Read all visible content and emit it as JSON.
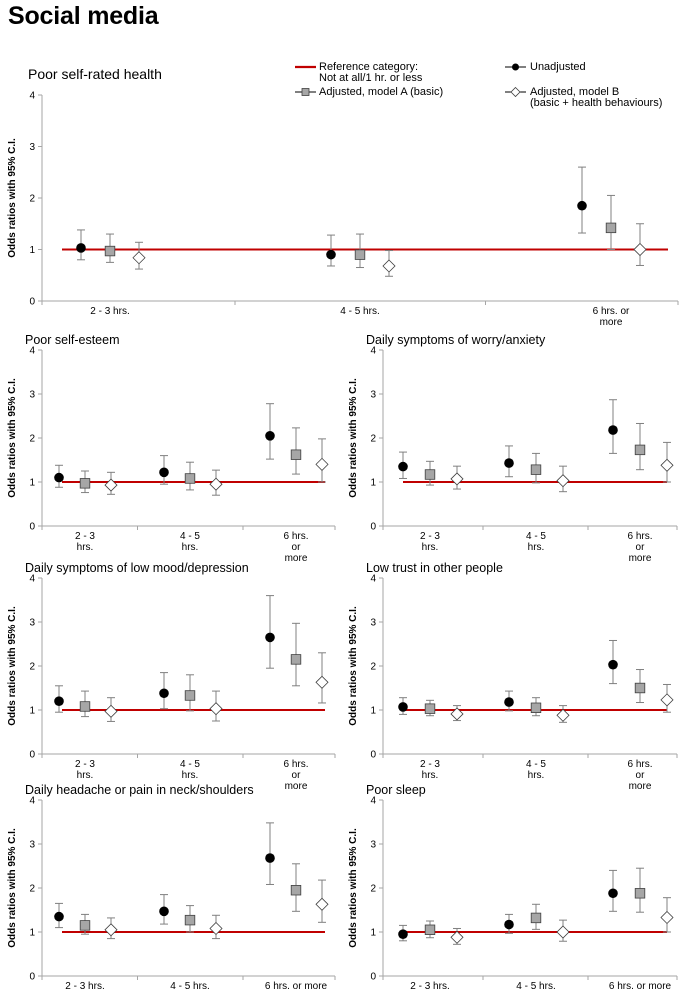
{
  "page_title": "Social media",
  "legend": {
    "reference": "Reference category:",
    "reference_line2": "Not at all/1 hr. or less",
    "unadjusted": "Unadjusted",
    "model_a": "Adjusted, model A (basic)",
    "model_b": "Adjusted, model B",
    "model_b_line2": "(basic + health behaviours)"
  },
  "colors": {
    "reference_line": "#c00000",
    "unadjusted_marker": "#000000",
    "model_a_marker": "#a6a6a6",
    "model_b_marker": "#ffffff",
    "error_bar": "#808080",
    "axis": "#a6a6a6"
  },
  "chart_data": [
    {
      "type": "scatter",
      "title": "Poor self-rated health",
      "ylabel": "Odds ratios with 95% C.I.",
      "ylim": [
        0,
        4
      ],
      "yticks": [
        "0",
        "1",
        "2",
        "3",
        "4"
      ],
      "reference_value": 1,
      "categories": [
        [
          "2 - 3 hrs."
        ],
        [
          "4 - 5 hrs."
        ],
        [
          "6 hrs. or",
          "more"
        ]
      ],
      "series": [
        {
          "name": "Unadjusted",
          "values": [
            1.03,
            0.9,
            1.85
          ],
          "lower": [
            0.8,
            0.68,
            1.32
          ],
          "upper": [
            1.38,
            1.28,
            2.6
          ]
        },
        {
          "name": "Adjusted, model A (basic)",
          "values": [
            0.97,
            0.9,
            1.42
          ],
          "lower": [
            0.75,
            0.65,
            1.0
          ],
          "upper": [
            1.3,
            1.3,
            2.05
          ]
        },
        {
          "name": "Adjusted, model B (basic + health behaviours)",
          "values": [
            0.84,
            0.68,
            1.0
          ],
          "lower": [
            0.62,
            0.48,
            0.69
          ],
          "upper": [
            1.14,
            0.98,
            1.5
          ]
        }
      ]
    },
    {
      "type": "scatter",
      "title": "Poor self-esteem",
      "ylabel": "Odds ratios with 95% C.I.",
      "ylim": [
        0,
        4
      ],
      "yticks": [
        "0",
        "1",
        "2",
        "3",
        "4"
      ],
      "reference_value": 1,
      "categories": [
        [
          "2 - 3",
          "hrs."
        ],
        [
          "4 - 5",
          "hrs."
        ],
        [
          "6 hrs.",
          "or",
          "more"
        ]
      ],
      "series": [
        {
          "name": "Unadjusted",
          "values": [
            1.1,
            1.22,
            2.05
          ],
          "lower": [
            0.88,
            0.95,
            1.52
          ],
          "upper": [
            1.38,
            1.6,
            2.78
          ]
        },
        {
          "name": "Adjusted, model A (basic)",
          "values": [
            0.97,
            1.08,
            1.62
          ],
          "lower": [
            0.76,
            0.82,
            1.18
          ],
          "upper": [
            1.25,
            1.45,
            2.23
          ]
        },
        {
          "name": "Adjusted, model B (basic + health behaviours)",
          "values": [
            0.93,
            0.95,
            1.4
          ],
          "lower": [
            0.72,
            0.7,
            1.0
          ],
          "upper": [
            1.22,
            1.27,
            1.98
          ]
        }
      ]
    },
    {
      "type": "scatter",
      "title": "Daily symptoms of worry/anxiety",
      "ylabel": "Odds ratios with 95% C.I.",
      "ylim": [
        0,
        4
      ],
      "yticks": [
        "0",
        "1",
        "2",
        "3",
        "4"
      ],
      "reference_value": 1,
      "categories": [
        [
          "2 - 3",
          "hrs."
        ],
        [
          "4 - 5",
          "hrs."
        ],
        [
          "6 hrs.",
          "or",
          "more"
        ]
      ],
      "series": [
        {
          "name": "Unadjusted",
          "values": [
            1.35,
            1.43,
            2.18
          ],
          "lower": [
            1.08,
            1.12,
            1.65
          ],
          "upper": [
            1.68,
            1.82,
            2.87
          ]
        },
        {
          "name": "Adjusted, model A (basic)",
          "values": [
            1.17,
            1.28,
            1.73
          ],
          "lower": [
            0.93,
            0.98,
            1.28
          ],
          "upper": [
            1.47,
            1.65,
            2.33
          ]
        },
        {
          "name": "Adjusted, model B (basic + health behaviours)",
          "values": [
            1.07,
            1.03,
            1.38
          ],
          "lower": [
            0.84,
            0.78,
            1.0
          ],
          "upper": [
            1.36,
            1.36,
            1.9
          ]
        }
      ]
    },
    {
      "type": "scatter",
      "title": "Daily symptoms of low mood/depression",
      "ylabel": "Odds ratios with 95% C.I.",
      "ylim": [
        0,
        4
      ],
      "yticks": [
        "0",
        "1",
        "2",
        "3",
        "4"
      ],
      "reference_value": 1,
      "categories": [
        [
          "2 - 3",
          "hrs."
        ],
        [
          "4 - 5",
          "hrs."
        ],
        [
          "6 hrs.",
          "or",
          "more"
        ]
      ],
      "series": [
        {
          "name": "Unadjusted",
          "values": [
            1.2,
            1.38,
            2.65
          ],
          "lower": [
            0.95,
            1.03,
            1.95
          ],
          "upper": [
            1.55,
            1.85,
            3.6
          ]
        },
        {
          "name": "Adjusted, model A (basic)",
          "values": [
            1.08,
            1.33,
            2.15
          ],
          "lower": [
            0.85,
            0.98,
            1.55
          ],
          "upper": [
            1.43,
            1.8,
            2.97
          ]
        },
        {
          "name": "Adjusted, model B (basic + health behaviours)",
          "values": [
            0.97,
            1.03,
            1.63
          ],
          "lower": [
            0.74,
            0.75,
            1.16
          ],
          "upper": [
            1.28,
            1.43,
            2.3
          ]
        }
      ]
    },
    {
      "type": "scatter",
      "title": "Low trust in other people",
      "ylabel": "Odds ratios with 95% C.I.",
      "ylim": [
        0,
        4
      ],
      "yticks": [
        "0",
        "1",
        "2",
        "3",
        "4"
      ],
      "reference_value": 1,
      "categories": [
        [
          "2 - 3",
          "hrs."
        ],
        [
          "4 - 5",
          "hrs."
        ],
        [
          "6 hrs.",
          "or",
          "more"
        ]
      ],
      "series": [
        {
          "name": "Unadjusted",
          "values": [
            1.07,
            1.18,
            2.03
          ],
          "lower": [
            0.9,
            0.98,
            1.6
          ],
          "upper": [
            1.28,
            1.43,
            2.58
          ]
        },
        {
          "name": "Adjusted, model A (basic)",
          "values": [
            1.03,
            1.05,
            1.5
          ],
          "lower": [
            0.87,
            0.87,
            1.17
          ],
          "upper": [
            1.22,
            1.28,
            1.92
          ]
        },
        {
          "name": "Adjusted, model B (basic + health behaviours)",
          "values": [
            0.91,
            0.88,
            1.23
          ],
          "lower": [
            0.76,
            0.72,
            0.95
          ],
          "upper": [
            1.1,
            1.1,
            1.58
          ]
        }
      ]
    },
    {
      "type": "scatter",
      "title": "Daily headache or pain in neck/shoulders",
      "ylabel": "Odds ratios with 95% C.I.",
      "ylim": [
        0,
        4
      ],
      "yticks": [
        "0",
        "1",
        "2",
        "3",
        "4"
      ],
      "reference_value": 1,
      "categories": [
        [
          "2 - 3 hrs."
        ],
        [
          "4 - 5 hrs."
        ],
        [
          "6 hrs. or more"
        ]
      ],
      "series": [
        {
          "name": "Unadjusted",
          "values": [
            1.35,
            1.47,
            2.68
          ],
          "lower": [
            1.1,
            1.18,
            2.08
          ],
          "upper": [
            1.65,
            1.85,
            3.48
          ]
        },
        {
          "name": "Adjusted, model A (basic)",
          "values": [
            1.15,
            1.27,
            1.95
          ],
          "lower": [
            0.95,
            1.0,
            1.47
          ],
          "upper": [
            1.4,
            1.6,
            2.55
          ]
        },
        {
          "name": "Adjusted, model B (basic + health behaviours)",
          "values": [
            1.05,
            1.08,
            1.63
          ],
          "lower": [
            0.85,
            0.85,
            1.22
          ],
          "upper": [
            1.32,
            1.38,
            2.18
          ]
        }
      ]
    },
    {
      "type": "scatter",
      "title": "Poor sleep",
      "ylabel": "Odds ratios with 95% C.I.",
      "ylim": [
        0,
        4
      ],
      "yticks": [
        "0",
        "1",
        "2",
        "3",
        "4"
      ],
      "reference_value": 1,
      "categories": [
        [
          "2 - 3 hrs."
        ],
        [
          "4 - 5 hrs."
        ],
        [
          "6 hrs. or more"
        ]
      ],
      "series": [
        {
          "name": "Unadjusted",
          "values": [
            0.95,
            1.17,
            1.88
          ],
          "lower": [
            0.8,
            0.97,
            1.47
          ],
          "upper": [
            1.15,
            1.4,
            2.4
          ]
        },
        {
          "name": "Adjusted, model A (basic)",
          "values": [
            1.05,
            1.32,
            1.88
          ],
          "lower": [
            0.87,
            1.06,
            1.45
          ],
          "upper": [
            1.25,
            1.63,
            2.45
          ]
        },
        {
          "name": "Adjusted, model B (basic + health behaviours)",
          "values": [
            0.88,
            1.0,
            1.33
          ],
          "lower": [
            0.72,
            0.79,
            1.0
          ],
          "upper": [
            1.08,
            1.27,
            1.78
          ]
        }
      ]
    }
  ]
}
